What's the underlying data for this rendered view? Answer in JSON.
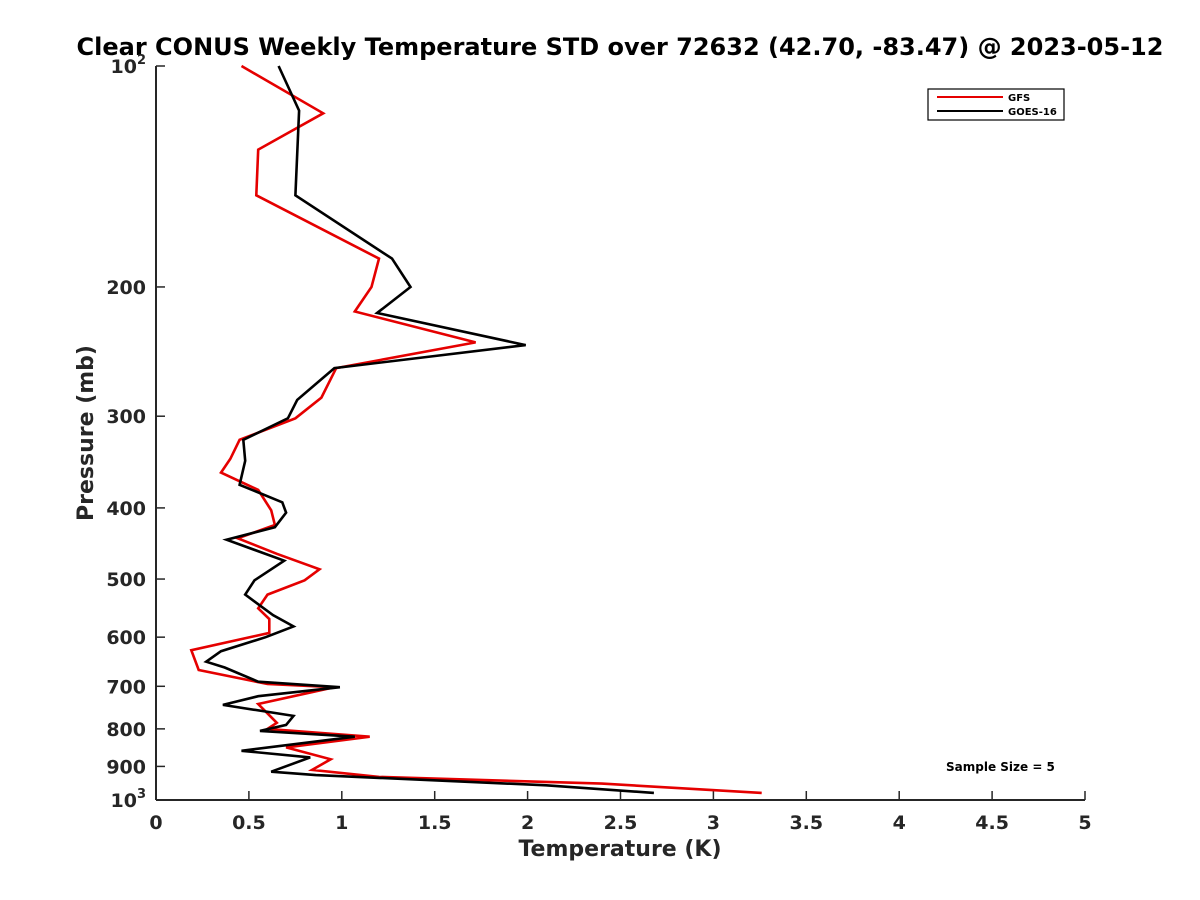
{
  "chart_data": {
    "type": "line",
    "title": "Clear CONUS Weekly Temperature STD over 72632 (42.70, -83.47) @ 2023-05-12",
    "xlabel": "Temperature (K)",
    "ylabel": "Pressure (mb)",
    "xlim": [
      0,
      5
    ],
    "ylim": [
      100,
      1000
    ],
    "y_scale": "log",
    "y_reversed": true,
    "x_ticks": [
      "0",
      "0.5",
      "1",
      "1.5",
      "2",
      "2.5",
      "3",
      "3.5",
      "4",
      "4.5",
      "5"
    ],
    "y_ticks": [
      {
        "value": 100,
        "base": "10",
        "exp": "2"
      },
      {
        "value": 200,
        "label": "200"
      },
      {
        "value": 300,
        "label": "300"
      },
      {
        "value": 400,
        "label": "400"
      },
      {
        "value": 500,
        "label": "500"
      },
      {
        "value": 600,
        "label": "600"
      },
      {
        "value": 700,
        "label": "700"
      },
      {
        "value": 800,
        "label": "800"
      },
      {
        "value": 900,
        "label": "900"
      },
      {
        "value": 1000,
        "base": "10",
        "exp": "3"
      }
    ],
    "legend": {
      "position": "top-right"
    },
    "annotation": "Sample Size = 5",
    "series": [
      {
        "name": "GFS",
        "color": "#e50000",
        "points": [
          [
            0.46,
            100
          ],
          [
            0.9,
            116
          ],
          [
            0.55,
            130
          ],
          [
            0.54,
            150
          ],
          [
            1.2,
            183
          ],
          [
            1.16,
            200
          ],
          [
            1.07,
            216
          ],
          [
            1.72,
            238
          ],
          [
            0.97,
            258
          ],
          [
            0.89,
            283
          ],
          [
            0.75,
            302
          ],
          [
            0.45,
            323
          ],
          [
            0.4,
            343
          ],
          [
            0.35,
            358
          ],
          [
            0.55,
            378
          ],
          [
            0.62,
            403
          ],
          [
            0.64,
            422
          ],
          [
            0.44,
            440
          ],
          [
            0.65,
            462
          ],
          [
            0.88,
            485
          ],
          [
            0.8,
            502
          ],
          [
            0.6,
            525
          ],
          [
            0.55,
            548
          ],
          [
            0.61,
            567
          ],
          [
            0.61,
            592
          ],
          [
            0.19,
            625
          ],
          [
            0.23,
            665
          ],
          [
            0.6,
            695
          ],
          [
            0.96,
            702
          ],
          [
            0.55,
            740
          ],
          [
            0.65,
            785
          ],
          [
            0.6,
            800
          ],
          [
            1.15,
            820
          ],
          [
            0.7,
            848
          ],
          [
            0.94,
            880
          ],
          [
            0.84,
            910
          ],
          [
            1.2,
            930
          ],
          [
            2.4,
            950
          ],
          [
            3.26,
            978
          ]
        ]
      },
      {
        "name": "GOES-16",
        "color": "#000000",
        "points": [
          [
            0.66,
            100
          ],
          [
            0.77,
            115
          ],
          [
            0.75,
            150
          ],
          [
            1.27,
            183
          ],
          [
            1.37,
            200
          ],
          [
            1.19,
            217
          ],
          [
            1.99,
            240
          ],
          [
            0.96,
            258
          ],
          [
            0.76,
            285
          ],
          [
            0.71,
            302
          ],
          [
            0.47,
            323
          ],
          [
            0.48,
            345
          ],
          [
            0.45,
            372
          ],
          [
            0.68,
            393
          ],
          [
            0.7,
            406
          ],
          [
            0.64,
            425
          ],
          [
            0.38,
            442
          ],
          [
            0.69,
            472
          ],
          [
            0.53,
            502
          ],
          [
            0.48,
            525
          ],
          [
            0.63,
            560
          ],
          [
            0.74,
            580
          ],
          [
            0.59,
            600
          ],
          [
            0.35,
            627
          ],
          [
            0.27,
            648
          ],
          [
            0.37,
            660
          ],
          [
            0.55,
            690
          ],
          [
            0.99,
            702
          ],
          [
            0.55,
            722
          ],
          [
            0.36,
            742
          ],
          [
            0.74,
            768
          ],
          [
            0.7,
            790
          ],
          [
            0.56,
            805
          ],
          [
            1.07,
            820
          ],
          [
            0.46,
            857
          ],
          [
            0.83,
            875
          ],
          [
            0.62,
            915
          ],
          [
            0.86,
            925
          ],
          [
            2.1,
            955
          ],
          [
            2.68,
            978
          ]
        ]
      }
    ]
  }
}
